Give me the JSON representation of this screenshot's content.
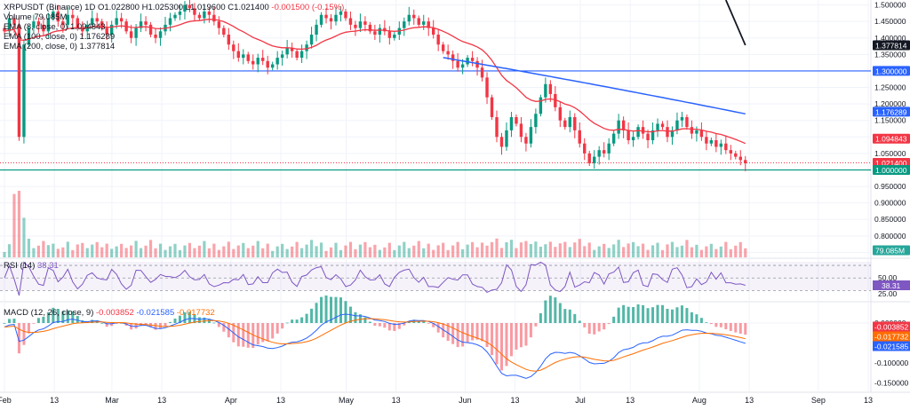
{
  "chart_data": [
    {
      "type": "candlestick",
      "symbol": "XRPUSDT (Binance) 1D",
      "ohlc_readout": {
        "open": "O1.022800",
        "high": "H1.025300",
        "low": "L1.019600",
        "close": "C1.021400",
        "change": "-0.001500 (-0.15%)"
      },
      "legend": [
        "Volume  79.085M",
        "EMA (8, close, 0)  1.094843",
        "EMA (100, close, 0)  1.176289",
        "EMA (200, close, 0)  1.377814"
      ],
      "price_ticks": [
        "1.500000",
        "1.450000",
        "1.400000",
        "1.350000",
        "1.300000",
        "1.250000",
        "1.200000",
        "1.150000",
        "1.100000",
        "1.050000",
        "1.000000",
        "0.950000",
        "0.900000",
        "0.850000",
        "0.800000",
        "0.750000"
      ],
      "price_tick_values": [
        1.5,
        1.45,
        1.4,
        1.35,
        1.3,
        1.25,
        1.2,
        1.15,
        1.1,
        1.05,
        1.0,
        0.95,
        0.9,
        0.85,
        0.8,
        0.75
      ],
      "ylim": [
        0.735,
        1.515
      ],
      "x_ticks": [
        "Feb",
        "13",
        "Mar",
        "13",
        "Apr",
        "13",
        "May",
        "13",
        "Jun",
        "13",
        "Jul",
        "13",
        "Aug",
        "13",
        "Sep",
        "13"
      ],
      "x_tick_days": [
        0,
        13,
        28,
        41,
        59,
        72,
        89,
        102,
        120,
        133,
        150,
        163,
        181,
        194,
        212,
        225
      ],
      "closes": [
        1.42,
        1.46,
        1.44,
        1.1,
        1.38,
        1.43,
        1.45,
        1.44,
        1.42,
        1.46,
        1.48,
        1.45,
        1.44,
        1.47,
        1.46,
        1.43,
        1.42,
        1.44,
        1.46,
        1.45,
        1.43,
        1.41,
        1.44,
        1.46,
        1.45,
        1.42,
        1.4,
        1.43,
        1.45,
        1.44,
        1.41,
        1.4,
        1.42,
        1.44,
        1.46,
        1.47,
        1.48,
        1.5,
        1.49,
        1.47,
        1.46,
        1.48,
        1.47,
        1.45,
        1.43,
        1.41,
        1.38,
        1.36,
        1.34,
        1.35,
        1.33,
        1.32,
        1.34,
        1.33,
        1.31,
        1.32,
        1.34,
        1.35,
        1.37,
        1.36,
        1.34,
        1.36,
        1.38,
        1.41,
        1.44,
        1.47,
        1.46,
        1.45,
        1.47,
        1.48,
        1.46,
        1.44,
        1.43,
        1.45,
        1.44,
        1.42,
        1.41,
        1.43,
        1.42,
        1.4,
        1.41,
        1.43,
        1.45,
        1.47,
        1.46,
        1.44,
        1.45,
        1.43,
        1.41,
        1.38,
        1.36,
        1.35,
        1.33,
        1.31,
        1.32,
        1.34,
        1.33,
        1.31,
        1.28,
        1.22,
        1.16,
        1.1,
        1.07,
        1.12,
        1.16,
        1.14,
        1.1,
        1.08,
        1.13,
        1.17,
        1.22,
        1.26,
        1.23,
        1.19,
        1.15,
        1.13,
        1.16,
        1.12,
        1.08,
        1.05,
        1.02,
        1.04,
        1.06,
        1.05,
        1.08,
        1.11,
        1.15,
        1.12,
        1.09,
        1.1,
        1.13,
        1.11,
        1.09,
        1.12,
        1.14,
        1.13,
        1.1,
        1.12,
        1.15,
        1.16,
        1.13,
        1.11,
        1.12,
        1.1,
        1.08,
        1.09,
        1.07,
        1.08,
        1.06,
        1.05,
        1.04,
        1.03,
        1.02
      ],
      "ema8_label": "1.094843",
      "ema100_label": "1.176289",
      "ema200_label": "1.377814",
      "hlines": [
        {
          "value": 1.3,
          "label": "1.300000",
          "color": "#2962ff"
        },
        {
          "value": 1.0,
          "label": "1.000000",
          "color": "#089981"
        }
      ],
      "price_tags": [
        {
          "label": "1.377814",
          "value": 1.377814,
          "color": "#131722"
        },
        {
          "label": "1.300000",
          "value": 1.3,
          "color": "#2962ff"
        },
        {
          "label": "1.176289",
          "value": 1.176289,
          "color": "#2962ff"
        },
        {
          "label": "1.094843",
          "value": 1.094843,
          "color": "#f23645"
        },
        {
          "label": "1.021400",
          "value": 1.0214,
          "color": "#f23645"
        },
        {
          "label": "1.000000",
          "value": 1.0,
          "color": "#089981"
        },
        {
          "label": "79.085M",
          "value": 0.745,
          "color": "#26a69a"
        }
      ],
      "volume_label": "79.085M"
    },
    {
      "type": "line",
      "title": "RSI (14)",
      "value_label": "38.31",
      "levels": [
        70,
        50,
        30
      ],
      "ticks": [
        "50.00",
        "25.00"
      ],
      "tick_values": [
        50,
        25
      ],
      "last": 38.31
    },
    {
      "type": "bar+line",
      "title": "MACD (12, 26, close, 9)",
      "readout": [
        "-0.003852",
        "-0.021585",
        "-0.017732"
      ],
      "readout_colors": [
        "#f23645",
        "#2962ff",
        "#ff6d00"
      ],
      "ticks": [
        "0.000000",
        "-0.050000",
        "-0.100000",
        "-0.150000"
      ],
      "tick_values": [
        0,
        -0.05,
        -0.1,
        -0.15
      ],
      "tags": [
        {
          "label": "-0.003852",
          "value": -0.003852,
          "color": "#f23645"
        },
        {
          "label": "-0.017732",
          "value": -0.017732,
          "color": "#ff6d00"
        },
        {
          "label": "-0.021585",
          "value": -0.021585,
          "color": "#2962ff"
        }
      ]
    }
  ],
  "colors": {
    "up": "#089981",
    "down": "#f23645",
    "ema8": "#f23645",
    "ema100": "#2962ff",
    "ema200": "#131722",
    "rsi": "#7e57c2",
    "grid": "#f0f3fa"
  }
}
